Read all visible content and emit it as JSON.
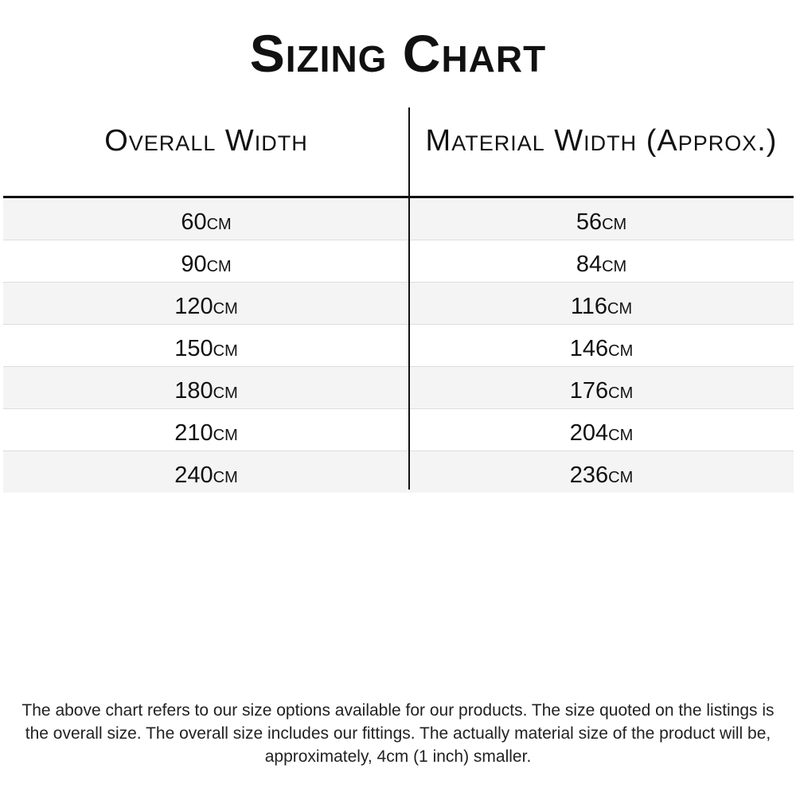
{
  "title": "Sizing Chart",
  "table": {
    "headers": [
      "Overall Width",
      "Material Width (Approx.)"
    ],
    "rows": [
      [
        "60cm",
        "56cm"
      ],
      [
        "90cm",
        "84cm"
      ],
      [
        "120cm",
        "116cm"
      ],
      [
        "150cm",
        "146cm"
      ],
      [
        "180cm",
        "176cm"
      ],
      [
        "210cm",
        "204cm"
      ],
      [
        "240cm",
        "236cm"
      ]
    ]
  },
  "note": "The above chart refers to our size options available for our products. The size quoted on the listings is the overall size. The overall size includes our fittings. The actually material size of the product will be, approximately, 4cm (1 inch) smaller."
}
